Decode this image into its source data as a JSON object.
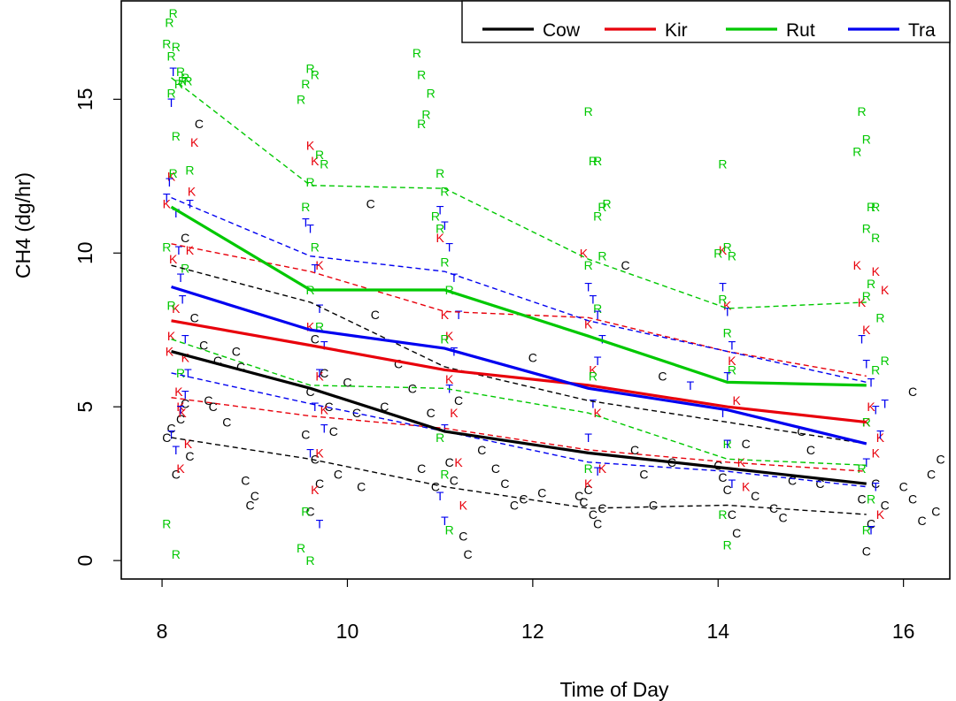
{
  "chart_data": {
    "type": "line",
    "title": "",
    "xlabel": "Time of Day",
    "ylabel": "CH4 (dg/hr)",
    "xlim": [
      7.56,
      16.5
    ],
    "ylim": [
      -0.6,
      18.2
    ],
    "xticks": [
      8,
      10,
      12,
      14,
      16
    ],
    "yticks": [
      0,
      5,
      10,
      15
    ],
    "xtick_labels": [
      "8",
      "10",
      "12",
      "14",
      "16"
    ],
    "ytick_labels": [
      "0",
      "5",
      "10",
      "15"
    ],
    "grid": false,
    "legend_position": "top-right",
    "x": [
      8.1,
      9.6,
      11.05,
      12.6,
      14.1,
      15.6
    ],
    "series": [
      {
        "name": "Cow",
        "color": "#000000",
        "letter": "C",
        "mean": [
          6.8,
          5.6,
          4.2,
          3.5,
          3.0,
          2.5
        ],
        "upper": [
          9.6,
          8.4,
          6.3,
          5.2,
          4.5,
          3.8
        ],
        "lower": [
          4.0,
          3.3,
          2.4,
          1.7,
          1.8,
          1.5
        ],
        "points": [
          [
            8.05,
            4.0
          ],
          [
            8.1,
            4.3
          ],
          [
            8.15,
            2.8
          ],
          [
            8.2,
            4.6
          ],
          [
            8.25,
            5.1
          ],
          [
            8.3,
            3.4
          ],
          [
            8.35,
            7.9
          ],
          [
            8.45,
            7.0
          ],
          [
            8.5,
            5.2
          ],
          [
            8.55,
            5.0
          ],
          [
            8.6,
            6.5
          ],
          [
            8.7,
            4.5
          ],
          [
            8.85,
            6.3
          ],
          [
            8.9,
            2.6
          ],
          [
            8.95,
            1.8
          ],
          [
            9.0,
            2.1
          ],
          [
            8.8,
            6.8
          ],
          [
            8.25,
            10.5
          ],
          [
            8.4,
            14.2
          ],
          [
            9.55,
            4.1
          ],
          [
            9.6,
            5.5
          ],
          [
            9.65,
            3.3
          ],
          [
            9.7,
            2.5
          ],
          [
            9.75,
            6.1
          ],
          [
            9.8,
            5.0
          ],
          [
            9.85,
            4.2
          ],
          [
            9.9,
            2.8
          ],
          [
            9.6,
            1.6
          ],
          [
            9.65,
            7.2
          ],
          [
            10.0,
            5.8
          ],
          [
            10.1,
            4.8
          ],
          [
            10.15,
            2.4
          ],
          [
            10.25,
            11.6
          ],
          [
            10.3,
            8.0
          ],
          [
            10.4,
            5.0
          ],
          [
            10.55,
            6.4
          ],
          [
            10.7,
            5.6
          ],
          [
            10.8,
            3.0
          ],
          [
            10.9,
            4.8
          ],
          [
            10.95,
            2.4
          ],
          [
            11.1,
            3.2
          ],
          [
            11.15,
            2.6
          ],
          [
            11.2,
            5.2
          ],
          [
            11.25,
            0.8
          ],
          [
            11.3,
            0.2
          ],
          [
            11.45,
            3.6
          ],
          [
            11.6,
            3.0
          ],
          [
            11.7,
            2.5
          ],
          [
            11.8,
            1.8
          ],
          [
            11.9,
            2.0
          ],
          [
            12.0,
            6.6
          ],
          [
            12.1,
            2.2
          ],
          [
            12.5,
            2.1
          ],
          [
            12.55,
            1.9
          ],
          [
            12.6,
            2.3
          ],
          [
            12.65,
            1.5
          ],
          [
            12.7,
            1.2
          ],
          [
            12.75,
            1.7
          ],
          [
            13.0,
            9.6
          ],
          [
            13.1,
            3.6
          ],
          [
            13.2,
            2.8
          ],
          [
            13.3,
            1.8
          ],
          [
            13.4,
            6.0
          ],
          [
            13.5,
            3.2
          ],
          [
            14.0,
            3.1
          ],
          [
            14.05,
            2.7
          ],
          [
            14.1,
            2.3
          ],
          [
            14.15,
            1.5
          ],
          [
            14.2,
            0.9
          ],
          [
            14.3,
            3.8
          ],
          [
            14.4,
            2.1
          ],
          [
            14.6,
            1.7
          ],
          [
            14.7,
            1.4
          ],
          [
            14.8,
            2.6
          ],
          [
            14.9,
            4.2
          ],
          [
            15.0,
            3.6
          ],
          [
            15.1,
            2.5
          ],
          [
            15.55,
            2.0
          ],
          [
            15.6,
            0.3
          ],
          [
            15.65,
            1.2
          ],
          [
            15.7,
            2.5
          ],
          [
            15.8,
            1.8
          ],
          [
            16.0,
            2.4
          ],
          [
            16.1,
            2.0
          ],
          [
            16.2,
            1.3
          ],
          [
            16.3,
            2.8
          ],
          [
            16.35,
            1.6
          ],
          [
            16.4,
            3.3
          ],
          [
            16.1,
            5.5
          ]
        ]
      },
      {
        "name": "Kir",
        "color": "#e8000b",
        "letter": "K",
        "mean": [
          7.8,
          7.0,
          6.2,
          5.7,
          5.0,
          4.5
        ],
        "upper": [
          10.3,
          9.4,
          8.1,
          7.9,
          6.8,
          6.0
        ],
        "lower": [
          5.3,
          4.7,
          4.3,
          3.6,
          3.2,
          2.9
        ],
        "points": [
          [
            8.05,
            11.6
          ],
          [
            8.08,
            6.8
          ],
          [
            8.1,
            12.5
          ],
          [
            8.12,
            9.8
          ],
          [
            8.15,
            8.2
          ],
          [
            8.18,
            5.5
          ],
          [
            8.2,
            3.0
          ],
          [
            8.22,
            4.8
          ],
          [
            8.25,
            6.6
          ],
          [
            8.28,
            3.8
          ],
          [
            8.3,
            10.1
          ],
          [
            8.32,
            12.0
          ],
          [
            8.35,
            13.6
          ],
          [
            8.1,
            7.3
          ],
          [
            8.2,
            5.0
          ],
          [
            9.6,
            13.5
          ],
          [
            9.65,
            13.0
          ],
          [
            9.7,
            9.6
          ],
          [
            9.75,
            4.9
          ],
          [
            9.7,
            3.5
          ],
          [
            9.65,
            2.3
          ],
          [
            9.6,
            7.6
          ],
          [
            9.7,
            6.0
          ],
          [
            11.0,
            10.5
          ],
          [
            11.05,
            8.0
          ],
          [
            11.1,
            7.3
          ],
          [
            11.15,
            4.8
          ],
          [
            11.2,
            3.2
          ],
          [
            11.25,
            1.8
          ],
          [
            11.1,
            5.9
          ],
          [
            12.55,
            10.0
          ],
          [
            12.6,
            7.7
          ],
          [
            12.65,
            6.2
          ],
          [
            12.7,
            4.8
          ],
          [
            12.75,
            3.0
          ],
          [
            12.6,
            2.5
          ],
          [
            14.05,
            10.1
          ],
          [
            14.1,
            8.3
          ],
          [
            14.15,
            6.5
          ],
          [
            14.2,
            5.2
          ],
          [
            14.25,
            3.2
          ],
          [
            14.3,
            2.4
          ],
          [
            15.5,
            9.6
          ],
          [
            15.55,
            8.4
          ],
          [
            15.6,
            7.5
          ],
          [
            15.65,
            5.0
          ],
          [
            15.7,
            3.5
          ],
          [
            15.75,
            1.5
          ],
          [
            15.7,
            9.4
          ],
          [
            15.8,
            8.8
          ],
          [
            15.6,
            4.5
          ],
          [
            15.75,
            4.0
          ]
        ]
      },
      {
        "name": "Rut",
        "color": "#00c800",
        "letter": "R",
        "mean": [
          11.5,
          8.8,
          8.8,
          7.3,
          5.8,
          5.7
        ],
        "upper": [
          15.7,
          12.2,
          12.1,
          9.8,
          8.2,
          8.4
        ],
        "lower": [
          7.2,
          5.7,
          5.6,
          4.8,
          3.3,
          3.1
        ],
        "points": [
          [
            8.05,
            16.8
          ],
          [
            8.08,
            17.5
          ],
          [
            8.1,
            16.4
          ],
          [
            8.12,
            17.8
          ],
          [
            8.15,
            16.7
          ],
          [
            8.18,
            15.5
          ],
          [
            8.2,
            15.9
          ],
          [
            8.22,
            15.6
          ],
          [
            8.25,
            15.7
          ],
          [
            8.28,
            15.6
          ],
          [
            8.1,
            15.2
          ],
          [
            8.15,
            13.8
          ],
          [
            8.12,
            12.6
          ],
          [
            8.3,
            12.7
          ],
          [
            8.05,
            10.2
          ],
          [
            8.1,
            8.3
          ],
          [
            8.2,
            6.1
          ],
          [
            8.05,
            1.2
          ],
          [
            8.15,
            0.2
          ],
          [
            8.25,
            9.5
          ],
          [
            9.5,
            15.0
          ],
          [
            9.55,
            15.5
          ],
          [
            9.6,
            16.0
          ],
          [
            9.65,
            15.8
          ],
          [
            9.7,
            13.2
          ],
          [
            9.75,
            12.9
          ],
          [
            9.6,
            12.3
          ],
          [
            9.55,
            11.5
          ],
          [
            9.65,
            10.2
          ],
          [
            9.6,
            8.8
          ],
          [
            9.7,
            7.6
          ],
          [
            9.5,
            0.4
          ],
          [
            9.6,
            0.0
          ],
          [
            9.55,
            1.6
          ],
          [
            10.75,
            16.5
          ],
          [
            10.8,
            15.8
          ],
          [
            10.9,
            15.2
          ],
          [
            10.85,
            14.5
          ],
          [
            10.8,
            14.2
          ],
          [
            11.0,
            12.6
          ],
          [
            11.05,
            12.0
          ],
          [
            10.95,
            11.2
          ],
          [
            11.0,
            10.8
          ],
          [
            11.05,
            9.7
          ],
          [
            11.1,
            8.8
          ],
          [
            11.05,
            7.2
          ],
          [
            11.0,
            4.0
          ],
          [
            11.05,
            2.8
          ],
          [
            11.1,
            1.0
          ],
          [
            12.6,
            14.6
          ],
          [
            12.65,
            13.0
          ],
          [
            12.7,
            13.0
          ],
          [
            12.75,
            11.5
          ],
          [
            12.8,
            11.6
          ],
          [
            12.7,
            11.2
          ],
          [
            12.75,
            9.9
          ],
          [
            12.6,
            9.6
          ],
          [
            12.7,
            8.2
          ],
          [
            12.65,
            6.0
          ],
          [
            12.6,
            3.0
          ],
          [
            14.05,
            12.9
          ],
          [
            14.1,
            10.2
          ],
          [
            14.15,
            9.9
          ],
          [
            14.0,
            10.0
          ],
          [
            14.05,
            8.5
          ],
          [
            14.1,
            7.4
          ],
          [
            14.15,
            6.2
          ],
          [
            14.1,
            3.8
          ],
          [
            14.05,
            1.5
          ],
          [
            14.1,
            0.5
          ],
          [
            15.5,
            13.3
          ],
          [
            15.55,
            14.6
          ],
          [
            15.6,
            13.7
          ],
          [
            15.65,
            11.5
          ],
          [
            15.7,
            11.5
          ],
          [
            15.6,
            10.8
          ],
          [
            15.7,
            10.5
          ],
          [
            15.65,
            9.0
          ],
          [
            15.6,
            8.6
          ],
          [
            15.75,
            7.9
          ],
          [
            15.8,
            6.5
          ],
          [
            15.7,
            6.2
          ],
          [
            15.6,
            4.5
          ],
          [
            15.55,
            3.0
          ],
          [
            15.65,
            2.0
          ],
          [
            15.6,
            1.0
          ]
        ]
      },
      {
        "name": "Tra",
        "color": "#0000f0",
        "letter": "T",
        "mean": [
          8.9,
          7.5,
          6.9,
          5.6,
          4.9,
          3.8
        ],
        "upper": [
          11.8,
          9.9,
          9.4,
          7.8,
          6.8,
          5.8
        ],
        "lower": [
          6.1,
          5.1,
          4.2,
          3.2,
          2.9,
          2.4
        ],
        "points": [
          [
            8.05,
            11.8
          ],
          [
            8.08,
            12.3
          ],
          [
            8.1,
            14.9
          ],
          [
            8.12,
            15.9
          ],
          [
            8.15,
            11.3
          ],
          [
            8.18,
            10.1
          ],
          [
            8.2,
            9.2
          ],
          [
            8.22,
            8.5
          ],
          [
            8.25,
            7.2
          ],
          [
            8.28,
            6.1
          ],
          [
            8.3,
            11.6
          ],
          [
            8.1,
            4.1
          ],
          [
            8.15,
            3.6
          ],
          [
            8.2,
            4.9
          ],
          [
            8.25,
            5.4
          ],
          [
            9.55,
            11.0
          ],
          [
            9.6,
            10.8
          ],
          [
            9.65,
            9.5
          ],
          [
            9.7,
            8.2
          ],
          [
            9.75,
            7.0
          ],
          [
            9.7,
            6.1
          ],
          [
            9.65,
            5.0
          ],
          [
            9.75,
            4.3
          ],
          [
            9.6,
            3.5
          ],
          [
            9.7,
            1.2
          ],
          [
            11.0,
            11.4
          ],
          [
            11.05,
            10.9
          ],
          [
            11.1,
            10.2
          ],
          [
            11.15,
            9.2
          ],
          [
            11.2,
            8.0
          ],
          [
            11.15,
            6.8
          ],
          [
            11.1,
            5.6
          ],
          [
            11.05,
            4.3
          ],
          [
            11.0,
            2.1
          ],
          [
            11.05,
            1.3
          ],
          [
            12.6,
            8.9
          ],
          [
            12.65,
            8.5
          ],
          [
            12.7,
            8.0
          ],
          [
            12.75,
            7.2
          ],
          [
            12.7,
            6.5
          ],
          [
            12.65,
            5.1
          ],
          [
            12.6,
            4.0
          ],
          [
            12.7,
            2.9
          ],
          [
            13.7,
            5.7
          ],
          [
            14.05,
            8.9
          ],
          [
            14.1,
            8.1
          ],
          [
            14.15,
            7.0
          ],
          [
            14.1,
            6.0
          ],
          [
            14.05,
            4.8
          ],
          [
            14.1,
            3.8
          ],
          [
            14.15,
            2.5
          ],
          [
            15.55,
            7.2
          ],
          [
            15.6,
            6.4
          ],
          [
            15.65,
            5.8
          ],
          [
            15.7,
            4.9
          ],
          [
            15.75,
            4.1
          ],
          [
            15.8,
            5.1
          ],
          [
            15.6,
            3.2
          ],
          [
            15.7,
            2.4
          ],
          [
            15.65,
            1.0
          ]
        ]
      }
    ]
  }
}
